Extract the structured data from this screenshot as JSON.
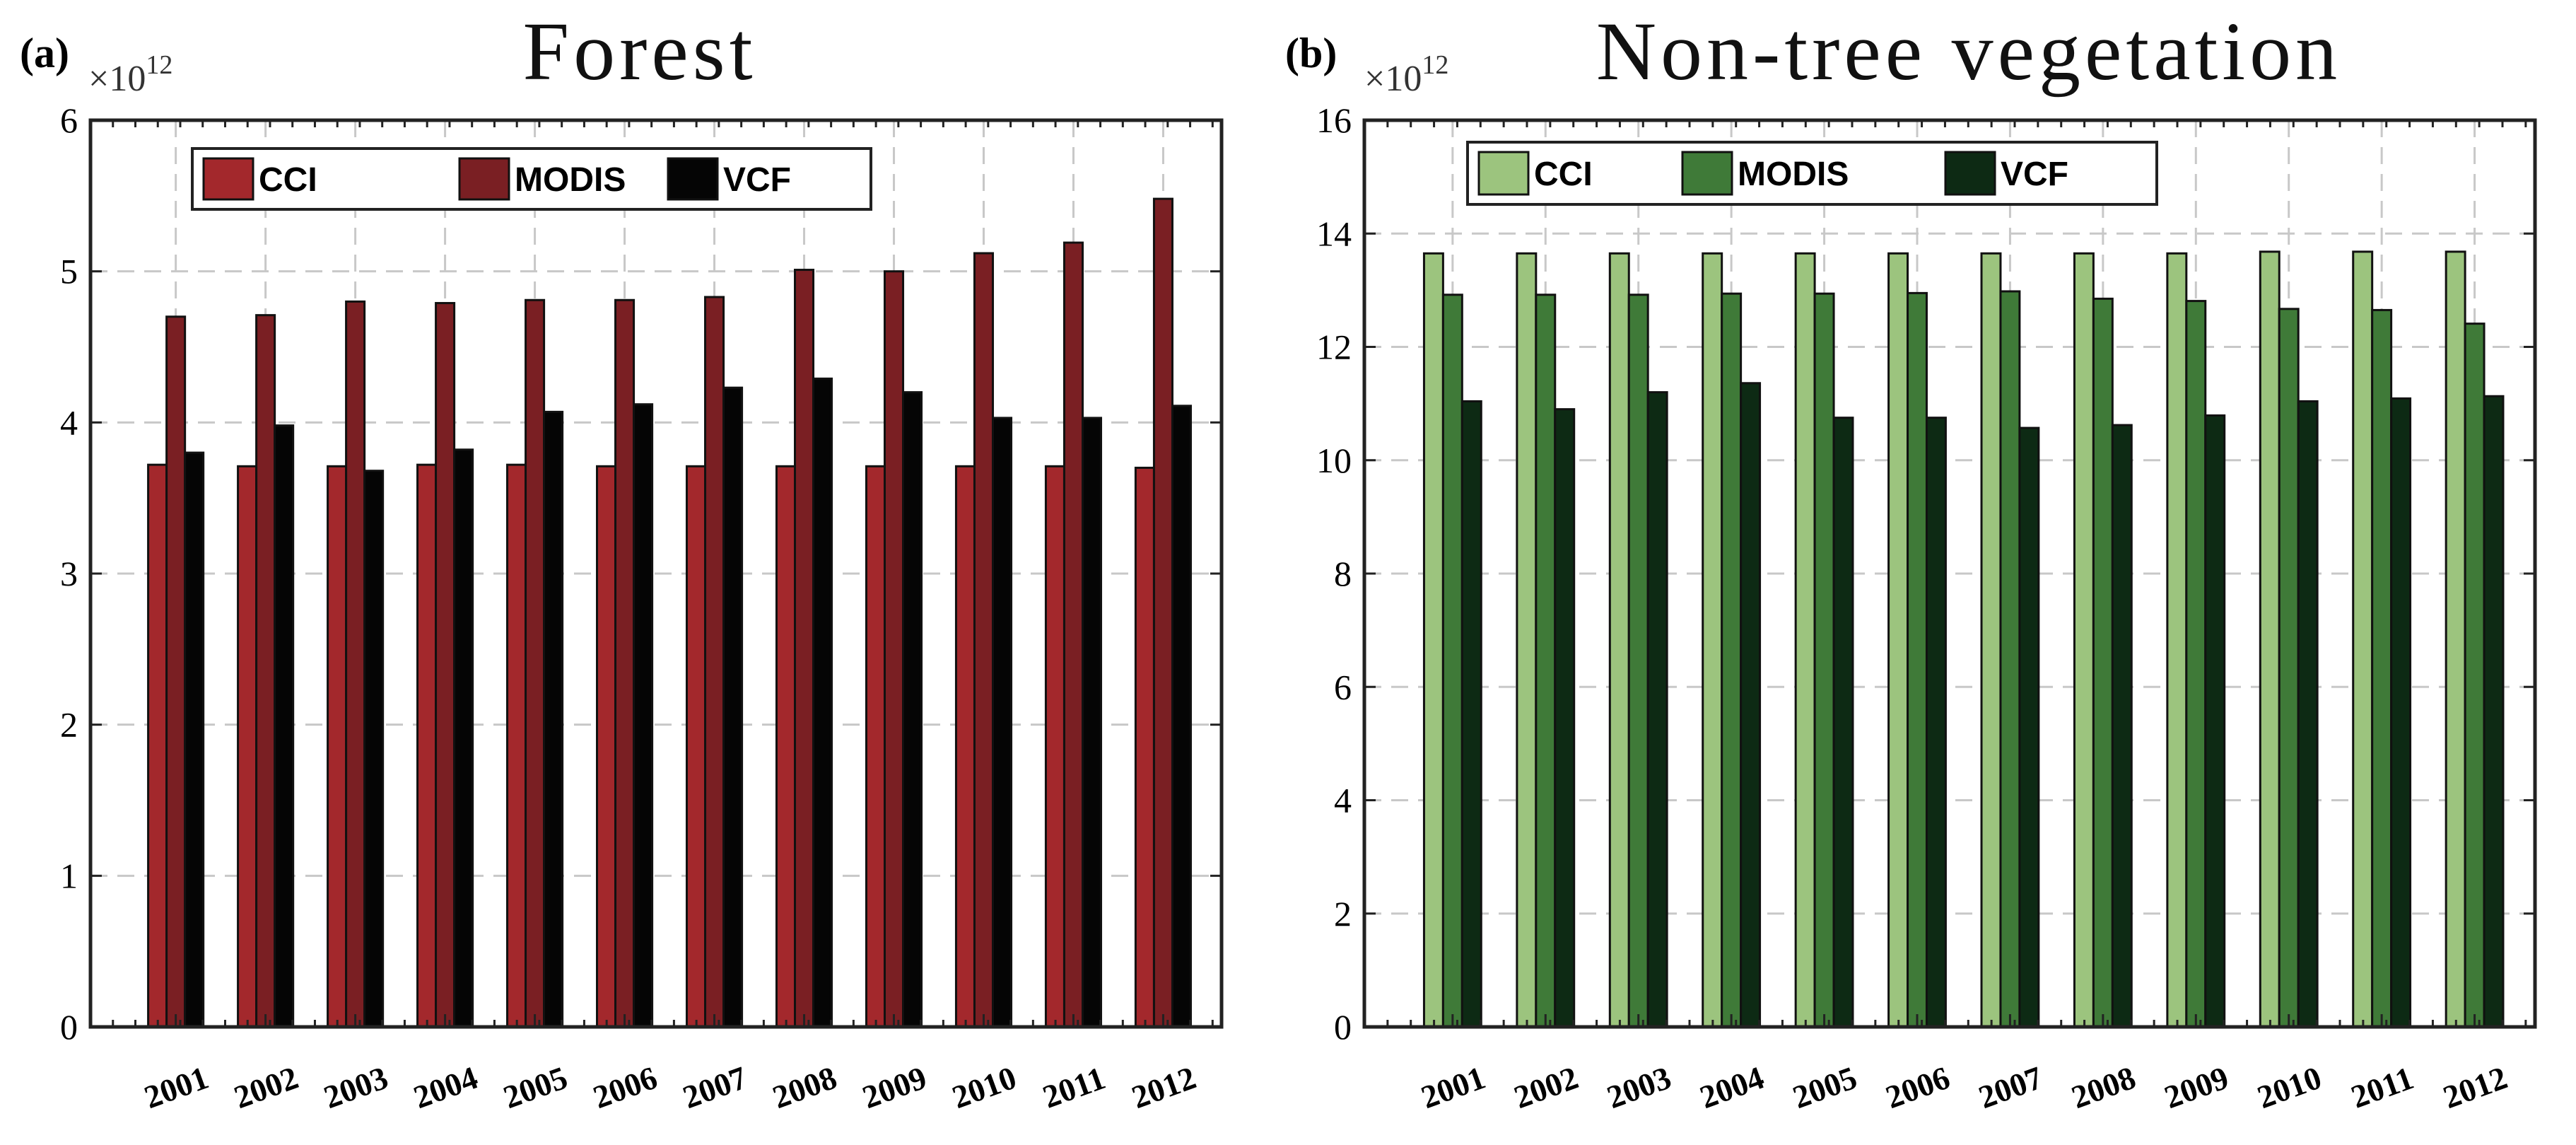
{
  "chart_data": [
    {
      "type": "bar",
      "panel_label": "(a)",
      "title": "Forest",
      "scale_base": "×10",
      "scale_exponent": "12",
      "categories": [
        "2001",
        "2002",
        "2003",
        "2004",
        "2005",
        "2006",
        "2007",
        "2008",
        "2009",
        "2010",
        "2011",
        "2012"
      ],
      "series": [
        {
          "name": "CCI",
          "color": "#a3282c",
          "values": [
            3.72,
            3.71,
            3.71,
            3.72,
            3.72,
            3.71,
            3.71,
            3.71,
            3.71,
            3.71,
            3.71,
            3.7
          ]
        },
        {
          "name": "MODIS",
          "color": "#7a1f23",
          "values": [
            4.7,
            4.71,
            4.8,
            4.79,
            4.81,
            4.81,
            4.83,
            5.01,
            5.0,
            5.12,
            5.19,
            5.48
          ]
        },
        {
          "name": "VCF",
          "color": "#050505",
          "values": [
            3.8,
            3.98,
            3.68,
            3.82,
            4.07,
            4.12,
            4.23,
            4.29,
            4.2,
            4.03,
            4.03,
            4.11
          ]
        }
      ],
      "ylim": [
        0,
        6
      ],
      "yticks": [
        "0",
        "1",
        "2",
        "3",
        "4",
        "5",
        "6"
      ],
      "xlabel": "",
      "ylabel": "",
      "grid": true,
      "legend_position": "top-left"
    },
    {
      "type": "bar",
      "panel_label": "(b)",
      "title": "Non-tree vegetation",
      "scale_base": "×10",
      "scale_exponent": "12",
      "categories": [
        "2001",
        "2002",
        "2003",
        "2004",
        "2005",
        "2006",
        "2007",
        "2008",
        "2009",
        "2010",
        "2011",
        "2012"
      ],
      "series": [
        {
          "name": "CCI",
          "color": "#9cc47e",
          "values": [
            13.65,
            13.65,
            13.65,
            13.65,
            13.65,
            13.65,
            13.65,
            13.65,
            13.65,
            13.68,
            13.68,
            13.68
          ]
        },
        {
          "name": "MODIS",
          "color": "#3f7a38",
          "values": [
            12.92,
            12.92,
            12.92,
            12.94,
            12.94,
            12.95,
            12.98,
            12.85,
            12.81,
            12.67,
            12.65,
            12.41
          ]
        },
        {
          "name": "VCF",
          "color": "#0d2a14",
          "values": [
            11.04,
            10.9,
            11.2,
            11.36,
            10.75,
            10.75,
            10.57,
            10.62,
            10.79,
            11.04,
            11.09,
            11.13
          ]
        }
      ],
      "ylim": [
        0,
        16
      ],
      "yticks": [
        "0",
        "2",
        "4",
        "6",
        "8",
        "10",
        "12",
        "14",
        "16"
      ],
      "xlabel": "",
      "ylabel": "",
      "grid": true,
      "legend_position": "top-left"
    }
  ]
}
